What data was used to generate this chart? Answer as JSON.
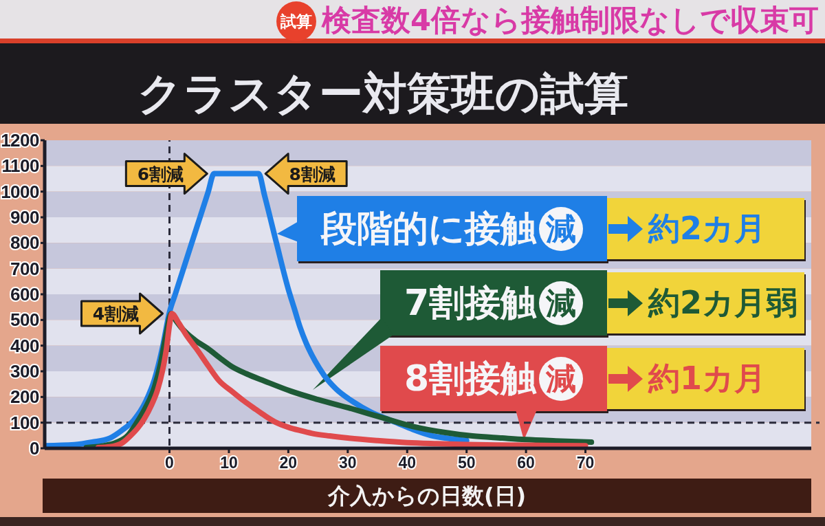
{
  "chart_data": {
    "type": "line",
    "title": "クラスター対策班の試算",
    "subtitle": "検査数4倍なら接触制限なしで収束可",
    "xlabel": "介入からの日数(日)",
    "xlim": [
      -21,
      108
    ],
    "xticks": [
      0,
      10,
      20,
      30,
      40,
      50,
      60,
      70
    ],
    "ylim": [
      0,
      1200
    ],
    "yticks": [
      0,
      100,
      200,
      300,
      400,
      500,
      600,
      700,
      800,
      900,
      1000,
      1100,
      1200
    ],
    "legend": "right",
    "ref_lines": [
      {
        "axis": "x",
        "value": 0,
        "color": "#2b2b3b",
        "line_style": "dashed"
      },
      {
        "axis": "y",
        "value": 100,
        "color": "#2b2b3b",
        "line_style": "dashed"
      }
    ],
    "series": [
      {
        "name": "段階的に接触減",
        "color": "#1f7fe6",
        "x": [
          -21,
          -16,
          -13,
          -10,
          -8,
          -6,
          -4,
          -2.5,
          -1.2,
          0,
          1,
          6.5,
          7.5,
          15,
          16,
          18,
          20,
          21,
          22,
          23,
          24.5,
          26,
          28,
          31,
          34,
          36,
          38,
          41,
          44,
          47,
          50
        ],
        "values": [
          10,
          14,
          24,
          40,
          70,
          110,
          182,
          270,
          390,
          530,
          602,
          998,
          1070,
          1070,
          985,
          800,
          620,
          545,
          470,
          410,
          340,
          285,
          232,
          180,
          140,
          120,
          102,
          73,
          50,
          38,
          30
        ]
      },
      {
        "name": "7割接触減",
        "color": "#1e5a36",
        "x": [
          -14,
          -11,
          -9,
          -7,
          -5.5,
          -4,
          -2.5,
          -1.5,
          -0.6,
          0.3,
          1,
          2,
          3,
          4.5,
          6.5,
          8.5,
          10.4,
          13,
          16,
          20.5,
          25,
          31,
          36,
          41,
          46,
          51,
          56,
          60,
          65,
          71
        ],
        "values": [
          3,
          10,
          22,
          50,
          100,
          160,
          240,
          330,
          440,
          525,
          500,
          470,
          446,
          418,
          388,
          352,
          320,
          290,
          262,
          222,
          190,
          152,
          118,
          85,
          63,
          48,
          40,
          34,
          29,
          24
        ]
      },
      {
        "name": "8割接触減",
        "color": "#e04a4c",
        "x": [
          -12,
          -10,
          -8,
          -6.6,
          -5.3,
          -4.3,
          -3,
          -2,
          -1.2,
          -0.5,
          0,
          0.4,
          1.5,
          3,
          4.5,
          6.5,
          8.4,
          10.5,
          12.5,
          14.5,
          16,
          18,
          20,
          22,
          24,
          27,
          30,
          35,
          40,
          45,
          50,
          55,
          60,
          65,
          70
        ],
        "values": [
          3,
          6,
          20,
          48,
          80,
          113,
          170,
          228,
          300,
          389,
          480,
          525,
          490,
          435,
          389,
          322,
          262,
          222,
          185,
          152,
          128,
          100,
          82,
          69,
          58,
          48,
          40,
          30,
          22,
          18,
          15,
          13,
          12,
          11,
          10
        ]
      }
    ],
    "annotations": [
      {
        "text": "4割減",
        "x": 0,
        "y": 525
      },
      {
        "text": "6割減",
        "x": 7.5,
        "y": 1070
      },
      {
        "text": "8割減",
        "x": 15,
        "y": 1070
      },
      "約2カ月",
      "約2カ月弱",
      "約1カ月",
      "試算"
    ]
  }
}
